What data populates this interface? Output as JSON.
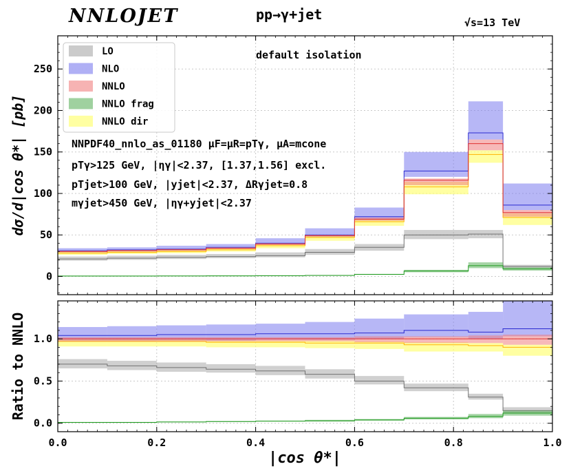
{
  "header": {
    "logo": "NNLOJET",
    "process": "pp→γ+jet",
    "energy": "√s=13 TeV"
  },
  "annotations": {
    "isolation": "default isolation",
    "pdf_line": "NNPDF40_nnlo_as_01180  μF=μR=pTγ, μA=mcone",
    "cut1": "pTγ>125 GeV, |ηγ|<2.37, [1.37,1.56] excl.",
    "cut2": "pTjet>100 GeV, |yjet|<2.37, ΔRγjet=0.8",
    "cut3": "mγjet>450 GeV, |ηγ+yjet|<2.37"
  },
  "colors": {
    "LO": "#a9a9a9",
    "NLO": "#7b7bef",
    "NNLO": "#f08080",
    "NNLO frag": "#5fb35f",
    "NNLO dir": "#ffff7a",
    "NLO_line": "#2a2ad0",
    "NNLO_line": "#e03030",
    "frag_line": "#1f9a1f",
    "dir_line": "#ffb000",
    "LO_line": "#707070"
  },
  "chart_data": [
    {
      "type": "area",
      "title": "pp→γ+jet",
      "xlabel": "|cos θ*|",
      "ylabel": "dσ/d|cos θ*|  [pb]",
      "xlim": [
        0.0,
        1.0
      ],
      "ylim": [
        -22,
        290
      ],
      "yticks": [
        "0",
        "50",
        "100",
        "150",
        "200",
        "250"
      ],
      "xticks": [
        "0.0",
        "0.2",
        "0.4",
        "0.6",
        "0.8",
        "1.0"
      ],
      "bin_edges": [
        0.0,
        0.1,
        0.2,
        0.3,
        0.4,
        0.5,
        0.6,
        0.7,
        0.83,
        0.9,
        1.0
      ],
      "legend": [
        "LO",
        "NLO",
        "NNLO",
        "NNLO frag",
        "NNLO dir"
      ],
      "legend_position": "top-left",
      "series": [
        {
          "name": "LO",
          "central": [
            21,
            22,
            23,
            24,
            25,
            29,
            35,
            50,
            51,
            12
          ],
          "low": [
            19,
            20,
            21,
            22,
            23,
            26,
            31,
            45,
            46,
            10
          ],
          "high": [
            24,
            25,
            26,
            27,
            29,
            33,
            39,
            56,
            56,
            14
          ]
        },
        {
          "name": "NLO",
          "central": [
            31,
            32,
            33,
            35,
            40,
            50,
            72,
            127,
            173,
            86
          ],
          "low": [
            29,
            30,
            31,
            33,
            38,
            47,
            68,
            120,
            165,
            80
          ],
          "high": [
            34,
            35,
            37,
            39,
            46,
            58,
            83,
            150,
            211,
            112
          ]
        },
        {
          "name": "NNLO dir",
          "central": [
            28,
            29,
            30,
            32,
            37,
            47,
            66,
            108,
            147,
            71
          ],
          "low": [
            26,
            27,
            28,
            30,
            34,
            43,
            61,
            99,
            137,
            62
          ],
          "high": [
            30,
            31,
            32,
            34,
            39,
            49,
            69,
            114,
            152,
            76
          ]
        },
        {
          "name": "NNLO",
          "central": [
            30,
            31,
            32,
            34,
            39,
            49,
            69,
            116,
            160,
            77
          ],
          "low": [
            29,
            30,
            31,
            33,
            38,
            48,
            67,
            110,
            152,
            72
          ],
          "high": [
            31,
            32,
            33,
            35,
            40,
            50,
            71,
            118,
            165,
            80
          ]
        },
        {
          "name": "NNLO frag",
          "central": [
            0.5,
            0.5,
            0.6,
            0.7,
            0.9,
            1.2,
            2.5,
            6.5,
            13,
            9
          ],
          "low": [
            0.3,
            0.3,
            0.4,
            0.5,
            0.7,
            0.9,
            2,
            5,
            10,
            7
          ],
          "high": [
            0.7,
            0.7,
            0.8,
            0.9,
            1.1,
            1.5,
            3,
            8,
            17,
            11
          ]
        }
      ]
    },
    {
      "type": "area",
      "ylabel": "Ratio to NNLO",
      "xlim": [
        0.0,
        1.0
      ],
      "ylim": [
        -0.1,
        1.45
      ],
      "yticks": [
        "0.0",
        "0.5",
        "1.0"
      ],
      "bin_edges": [
        0.0,
        0.1,
        0.2,
        0.3,
        0.4,
        0.5,
        0.6,
        0.7,
        0.83,
        0.9,
        1.0
      ],
      "series": [
        {
          "name": "LO",
          "central": [
            0.7,
            0.68,
            0.66,
            0.64,
            0.62,
            0.58,
            0.5,
            0.42,
            0.31,
            0.15
          ],
          "low": [
            0.65,
            0.63,
            0.61,
            0.6,
            0.57,
            0.53,
            0.46,
            0.38,
            0.28,
            0.12
          ],
          "high": [
            0.76,
            0.74,
            0.72,
            0.7,
            0.68,
            0.64,
            0.56,
            0.47,
            0.35,
            0.19
          ]
        },
        {
          "name": "NLO",
          "central": [
            1.04,
            1.04,
            1.05,
            1.05,
            1.06,
            1.06,
            1.07,
            1.1,
            1.08,
            1.12
          ],
          "low": [
            0.97,
            0.97,
            0.98,
            0.98,
            0.99,
            0.99,
            1.0,
            1.02,
            1.0,
            1.03
          ],
          "high": [
            1.14,
            1.15,
            1.16,
            1.17,
            1.18,
            1.2,
            1.24,
            1.29,
            1.32,
            1.45
          ]
        },
        {
          "name": "NNLO dir",
          "central": [
            0.97,
            0.97,
            0.97,
            0.96,
            0.96,
            0.95,
            0.95,
            0.93,
            0.92,
            0.9
          ],
          "low": [
            0.91,
            0.91,
            0.91,
            0.9,
            0.9,
            0.89,
            0.88,
            0.85,
            0.85,
            0.8
          ],
          "high": [
            0.99,
            0.99,
            0.99,
            0.98,
            0.98,
            0.98,
            0.97,
            0.96,
            0.95,
            0.93
          ]
        },
        {
          "name": "NNLO",
          "central": [
            1.0,
            1.0,
            1.0,
            1.0,
            1.0,
            1.0,
            1.0,
            1.0,
            1.0,
            1.0
          ],
          "low": [
            0.97,
            0.97,
            0.97,
            0.97,
            0.97,
            0.97,
            0.96,
            0.95,
            0.95,
            0.93
          ],
          "high": [
            1.02,
            1.02,
            1.02,
            1.02,
            1.02,
            1.02,
            1.03,
            1.03,
            1.04,
            1.05
          ]
        },
        {
          "name": "NNLO frag",
          "central": [
            0.01,
            0.01,
            0.015,
            0.02,
            0.025,
            0.03,
            0.04,
            0.06,
            0.08,
            0.12
          ],
          "low": [
            0.005,
            0.005,
            0.01,
            0.015,
            0.02,
            0.02,
            0.03,
            0.045,
            0.06,
            0.09
          ],
          "high": [
            0.015,
            0.015,
            0.02,
            0.025,
            0.03,
            0.04,
            0.05,
            0.075,
            0.11,
            0.15
          ]
        }
      ]
    }
  ]
}
